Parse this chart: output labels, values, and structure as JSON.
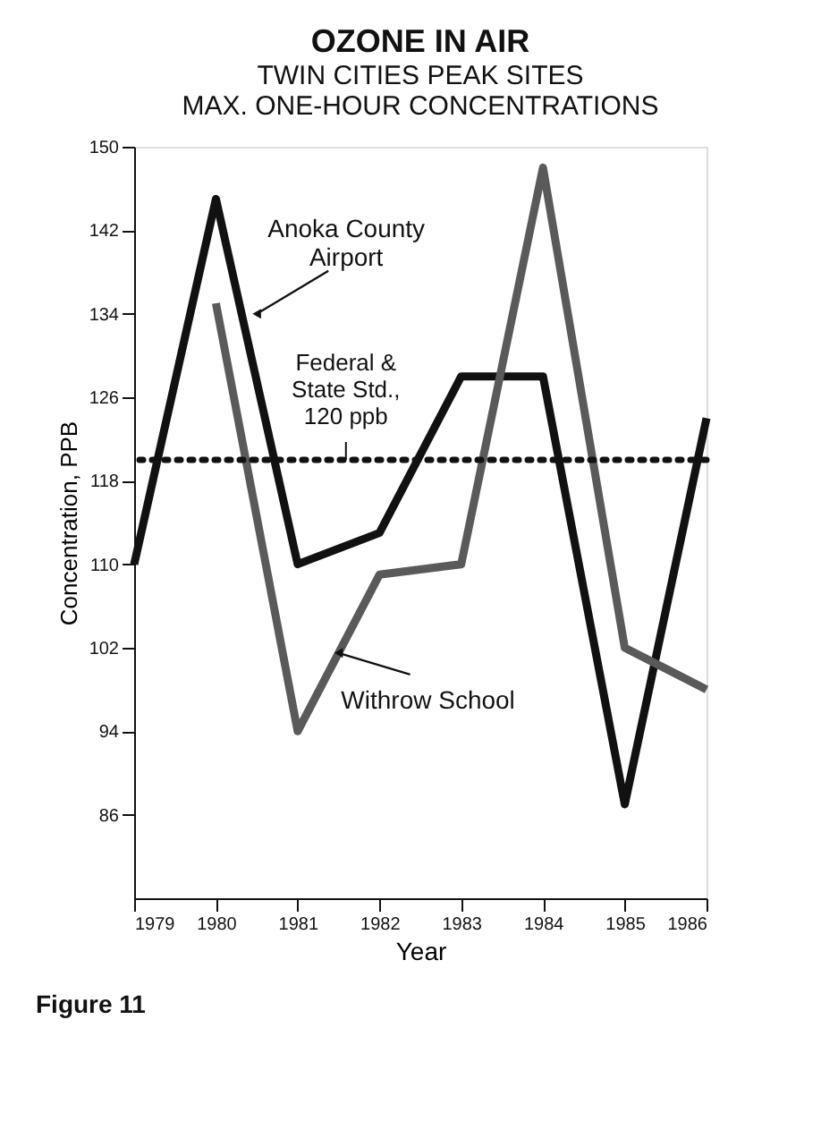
{
  "chart_data": {
    "type": "line",
    "title": "OZONE IN AIR",
    "subtitle": "TWIN CITIES PEAK SITES\nMAX. ONE-HOUR CONCENTRATIONS",
    "xlabel": "Year",
    "ylabel": "Concentration, PPB",
    "x": [
      1979,
      1980,
      1981,
      1982,
      1983,
      1984,
      1985,
      1986
    ],
    "series": [
      {
        "color": "#111111",
        "values": [
          110,
          145,
          110,
          113,
          128,
          128,
          87,
          124
        ]
      },
      {
        "color": "#5a5a5a",
        "values": [
          null,
          135,
          94,
          109,
          110,
          148,
          102,
          98
        ]
      }
    ],
    "xlim": [
      1979,
      1986
    ],
    "xticks": [
      1979,
      1980,
      1981,
      1982,
      1983,
      1984,
      1985,
      1986
    ],
    "ylim": [
      78,
      150
    ],
    "yticks": [
      86,
      94,
      102,
      110,
      118,
      126,
      134,
      142,
      150
    ],
    "ref_lines": [
      {
        "axis": "y",
        "value": 120,
        "label": "Federal &\nState Std.,\n120 ppb",
        "color": "#111111",
        "line_style": "dotted"
      }
    ],
    "annotations": [
      {
        "text": "Anoka County\nAirport",
        "x": 1980.5,
        "y": 134
      },
      {
        "text": "Withrow School",
        "x": 1981.5,
        "y": 101.5
      },
      "Figure 11"
    ],
    "grid": false,
    "marker": "none",
    "line_style": "solid"
  }
}
